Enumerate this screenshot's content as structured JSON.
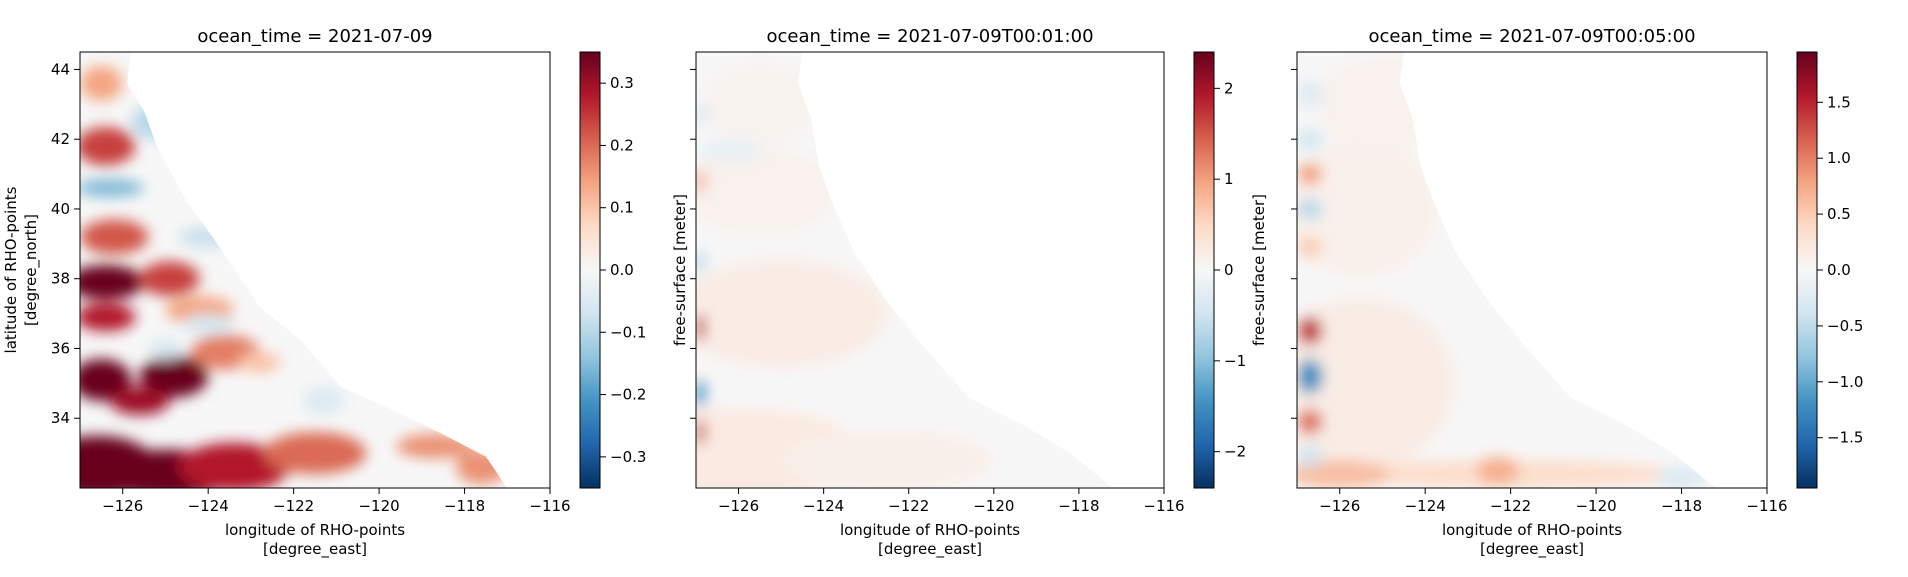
{
  "colors": {
    "colormap": "RdBu_r",
    "stops": [
      "#053061",
      "#2166ac",
      "#4393c3",
      "#92c5de",
      "#d1e5f0",
      "#f7f7f7",
      "#fddbc7",
      "#f4a582",
      "#d6604d",
      "#b2182b",
      "#67001f"
    ],
    "background": "#ffffff"
  },
  "chart_data": [
    {
      "type": "heatmap",
      "title": "ocean_time = 2021-07-09",
      "xlabel": "longitude of RHO-points\n[degree_east]",
      "ylabel": "latitude of RHO-points\n[degree_north]",
      "xlim": [
        -127,
        -116
      ],
      "ylim": [
        32.0,
        44.5
      ],
      "xticks": [
        -126,
        -124,
        -122,
        -120,
        -118,
        -116
      ],
      "xticklabels": [
        "−126",
        "−124",
        "−122",
        "−120",
        "−118",
        "−116"
      ],
      "yticks": [
        34,
        36,
        38,
        40,
        42,
        44
      ],
      "yticklabels": [
        "34",
        "36",
        "38",
        "40",
        "42",
        "44"
      ],
      "show_yticklabels": true,
      "colorbar": {
        "label": "free-surface [meter]",
        "vmin": -0.35,
        "vmax": 0.35,
        "ticks": [
          -0.3,
          -0.2,
          -0.1,
          0.0,
          0.1,
          0.2,
          0.3
        ],
        "ticklabels": [
          "−0.3",
          "−0.2",
          "−0.1",
          "0.0",
          "0.1",
          "0.2",
          "0.3"
        ]
      },
      "coastline": [
        [
          -125.8,
          44.5
        ],
        [
          -125.9,
          43.6
        ],
        [
          -125.5,
          42.8
        ],
        [
          -125.2,
          41.8
        ],
        [
          -124.5,
          40.2
        ],
        [
          -123.9,
          39.2
        ],
        [
          -123.4,
          38.3
        ],
        [
          -122.8,
          37.2
        ],
        [
          -121.8,
          36.2
        ],
        [
          -120.9,
          34.9
        ],
        [
          -119.8,
          34.3
        ],
        [
          -118.6,
          33.6
        ],
        [
          -117.5,
          32.9
        ],
        [
          -117.0,
          32.0
        ]
      ],
      "features": [
        {
          "lon": -126.6,
          "lat": 32.6,
          "rx": 1.4,
          "ry": 0.9,
          "value": 0.42
        },
        {
          "lon": -125.0,
          "lat": 32.4,
          "rx": 1.6,
          "ry": 0.7,
          "value": 0.36
        },
        {
          "lon": -123.4,
          "lat": 32.6,
          "rx": 1.3,
          "ry": 0.7,
          "value": 0.28
        },
        {
          "lon": -121.5,
          "lat": 33.0,
          "rx": 1.2,
          "ry": 0.6,
          "value": 0.2
        },
        {
          "lon": -118.7,
          "lat": 33.2,
          "rx": 0.9,
          "ry": 0.35,
          "value": 0.16
        },
        {
          "lon": -117.6,
          "lat": 32.6,
          "rx": 0.6,
          "ry": 0.5,
          "value": 0.16
        },
        {
          "lon": -126.5,
          "lat": 35.1,
          "rx": 0.7,
          "ry": 0.6,
          "value": 0.4
        },
        {
          "lon": -124.8,
          "lat": 35.2,
          "rx": 0.8,
          "ry": 0.6,
          "value": 0.38
        },
        {
          "lon": -125.6,
          "lat": 34.5,
          "rx": 0.7,
          "ry": 0.4,
          "value": 0.3
        },
        {
          "lon": -123.6,
          "lat": 35.9,
          "rx": 0.8,
          "ry": 0.5,
          "value": 0.18
        },
        {
          "lon": -126.4,
          "lat": 37.9,
          "rx": 0.9,
          "ry": 0.5,
          "value": 0.4
        },
        {
          "lon": -124.9,
          "lat": 38.0,
          "rx": 0.7,
          "ry": 0.5,
          "value": 0.24
        },
        {
          "lon": -124.2,
          "lat": 37.1,
          "rx": 0.8,
          "ry": 0.4,
          "value": 0.14
        },
        {
          "lon": -126.4,
          "lat": 36.9,
          "rx": 0.7,
          "ry": 0.4,
          "value": 0.28
        },
        {
          "lon": -126.2,
          "lat": 39.2,
          "rx": 0.8,
          "ry": 0.5,
          "value": 0.22
        },
        {
          "lon": -126.4,
          "lat": 41.8,
          "rx": 0.7,
          "ry": 0.55,
          "value": 0.24
        },
        {
          "lon": -126.5,
          "lat": 43.6,
          "rx": 0.5,
          "ry": 0.5,
          "value": 0.14
        },
        {
          "lon": -126.3,
          "lat": 40.6,
          "rx": 0.8,
          "ry": 0.25,
          "value": -0.16
        },
        {
          "lon": -125.2,
          "lat": 42.5,
          "rx": 0.6,
          "ry": 0.5,
          "value": -0.1
        },
        {
          "lon": -124.0,
          "lat": 39.2,
          "rx": 0.7,
          "ry": 0.3,
          "value": -0.08
        },
        {
          "lon": -124.0,
          "lat": 36.7,
          "rx": 0.6,
          "ry": 0.3,
          "value": -0.06
        },
        {
          "lon": -125.0,
          "lat": 36.0,
          "rx": 0.4,
          "ry": 0.3,
          "value": -0.05
        },
        {
          "lon": -121.3,
          "lat": 34.5,
          "rx": 0.5,
          "ry": 0.4,
          "value": -0.05
        },
        {
          "lon": -122.8,
          "lat": 35.6,
          "rx": 0.5,
          "ry": 0.3,
          "value": 0.1
        }
      ]
    },
    {
      "type": "heatmap",
      "title": "ocean_time = 2021-07-09T00:01:00",
      "xlabel": "longitude of RHO-points\n[degree_east]",
      "ylabel": "",
      "xlim": [
        -127,
        -116
      ],
      "ylim": [
        32.0,
        44.5
      ],
      "xticks": [
        -126,
        -124,
        -122,
        -120,
        -118,
        -116
      ],
      "xticklabels": [
        "−126",
        "−124",
        "−122",
        "−120",
        "−118",
        "−116"
      ],
      "yticks": [
        34,
        36,
        38,
        40,
        42,
        44
      ],
      "yticklabels": [],
      "show_yticklabels": false,
      "colorbar": {
        "label": "free-surface [meter]",
        "vmin": -2.4,
        "vmax": 2.4,
        "ticks": [
          -2,
          -1,
          0,
          1,
          2
        ],
        "ticklabels": [
          "−2",
          "−1",
          "0",
          "1",
          "2"
        ]
      },
      "coastline": [
        [
          -124.5,
          44.5
        ],
        [
          -124.6,
          43.6
        ],
        [
          -124.3,
          42.6
        ],
        [
          -124.1,
          41.2
        ],
        [
          -123.8,
          40.2
        ],
        [
          -123.3,
          38.8
        ],
        [
          -122.6,
          37.5
        ],
        [
          -121.9,
          36.4
        ],
        [
          -120.6,
          34.6
        ],
        [
          -119.3,
          33.8
        ],
        [
          -118.2,
          33.0
        ],
        [
          -117.2,
          32.0
        ]
      ],
      "features": [
        {
          "lon": -126.0,
          "lat": 33.0,
          "rx": 3.0,
          "ry": 1.3,
          "value": 0.22
        },
        {
          "lon": -122.5,
          "lat": 32.8,
          "rx": 2.5,
          "ry": 0.9,
          "value": 0.14
        },
        {
          "lon": -125.0,
          "lat": 37.0,
          "rx": 2.5,
          "ry": 1.6,
          "value": 0.18
        },
        {
          "lon": -125.5,
          "lat": 40.5,
          "rx": 1.8,
          "ry": 1.3,
          "value": 0.1
        },
        {
          "lon": -125.5,
          "lat": 43.0,
          "rx": 1.4,
          "ry": 1.2,
          "value": 0.08
        },
        {
          "lon": -126.2,
          "lat": 41.7,
          "rx": 0.8,
          "ry": 0.3,
          "value": -0.2
        },
        {
          "lon": -126.9,
          "lat": 36.6,
          "rx": 0.12,
          "ry": 0.4,
          "value": 1.8
        },
        {
          "lon": -126.9,
          "lat": 34.7,
          "rx": 0.12,
          "ry": 0.4,
          "value": -1.5
        },
        {
          "lon": -126.9,
          "lat": 33.6,
          "rx": 0.12,
          "ry": 0.35,
          "value": 1.7
        },
        {
          "lon": -126.9,
          "lat": 40.8,
          "rx": 0.12,
          "ry": 0.35,
          "value": 0.9
        },
        {
          "lon": -126.9,
          "lat": 38.5,
          "rx": 0.12,
          "ry": 0.3,
          "value": -0.7
        },
        {
          "lon": -126.9,
          "lat": 42.7,
          "rx": 0.12,
          "ry": 0.3,
          "value": -0.5
        }
      ]
    },
    {
      "type": "heatmap",
      "title": "ocean_time = 2021-07-09T00:05:00",
      "xlabel": "longitude of RHO-points\n[degree_east]",
      "ylabel": "",
      "xlim": [
        -127,
        -116
      ],
      "ylim": [
        32.0,
        44.5
      ],
      "xticks": [
        -126,
        -124,
        -122,
        -120,
        -118,
        -116
      ],
      "xticklabels": [
        "−126",
        "−124",
        "−122",
        "−120",
        "−118",
        "−116"
      ],
      "yticks": [
        34,
        36,
        38,
        40,
        42,
        44
      ],
      "yticklabels": [],
      "show_yticklabels": false,
      "colorbar": {
        "label": "free-surface [meter]",
        "vmin": -1.95,
        "vmax": 1.95,
        "ticks": [
          -1.5,
          -1.0,
          -0.5,
          0.0,
          0.5,
          1.0,
          1.5
        ],
        "ticklabels": [
          "−1.5",
          "−1.0",
          "−0.5",
          "0.0",
          "0.5",
          "1.0",
          "1.5"
        ]
      },
      "coastline": [
        [
          -124.5,
          44.5
        ],
        [
          -124.6,
          43.6
        ],
        [
          -124.3,
          42.6
        ],
        [
          -124.1,
          41.2
        ],
        [
          -123.8,
          40.2
        ],
        [
          -123.3,
          38.8
        ],
        [
          -122.6,
          37.5
        ],
        [
          -121.9,
          36.4
        ],
        [
          -120.6,
          34.6
        ],
        [
          -119.3,
          33.8
        ],
        [
          -118.2,
          33.0
        ],
        [
          -117.2,
          32.0
        ]
      ],
      "features": [
        {
          "lon": -125.5,
          "lat": 35.0,
          "rx": 2.2,
          "ry": 2.5,
          "value": 0.15
        },
        {
          "lon": -122.0,
          "lat": 32.4,
          "rx": 4.0,
          "ry": 0.4,
          "value": 0.35
        },
        {
          "lon": -126.0,
          "lat": 32.4,
          "rx": 1.2,
          "ry": 0.4,
          "value": 0.6
        },
        {
          "lon": -125.5,
          "lat": 40.0,
          "rx": 1.8,
          "ry": 2.0,
          "value": 0.1
        },
        {
          "lon": -125.0,
          "lat": 43.0,
          "rx": 1.5,
          "ry": 1.4,
          "value": 0.08
        },
        {
          "lon": -122.3,
          "lat": 32.5,
          "rx": 0.5,
          "ry": 0.4,
          "value": 0.7
        },
        {
          "lon": -118.0,
          "lat": 32.3,
          "rx": 0.6,
          "ry": 0.3,
          "value": -0.3
        },
        {
          "lon": -126.7,
          "lat": 43.3,
          "rx": 0.3,
          "ry": 0.4,
          "value": -0.25
        },
        {
          "lon": -126.7,
          "lat": 42.0,
          "rx": 0.3,
          "ry": 0.35,
          "value": -0.35
        },
        {
          "lon": -126.7,
          "lat": 41.0,
          "rx": 0.3,
          "ry": 0.3,
          "value": 0.8
        },
        {
          "lon": -126.7,
          "lat": 40.0,
          "rx": 0.3,
          "ry": 0.3,
          "value": -0.55
        },
        {
          "lon": -126.7,
          "lat": 38.9,
          "rx": 0.3,
          "ry": 0.3,
          "value": 0.5
        },
        {
          "lon": -126.7,
          "lat": 36.5,
          "rx": 0.3,
          "ry": 0.4,
          "value": 1.4
        },
        {
          "lon": -126.7,
          "lat": 35.2,
          "rx": 0.3,
          "ry": 0.5,
          "value": -1.2
        },
        {
          "lon": -126.7,
          "lat": 33.9,
          "rx": 0.3,
          "ry": 0.35,
          "value": 1.1
        },
        {
          "lon": -126.7,
          "lat": 32.9,
          "rx": 0.3,
          "ry": 0.3,
          "value": -0.4
        }
      ]
    }
  ]
}
